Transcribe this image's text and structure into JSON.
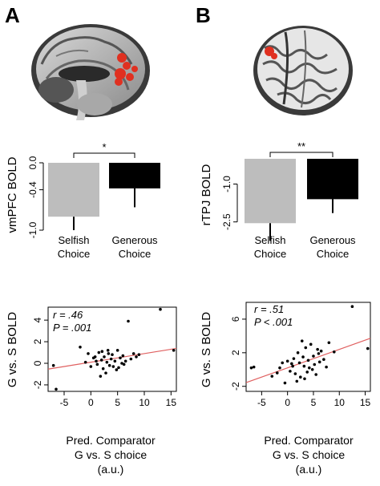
{
  "panels": [
    {
      "letter": "A",
      "brain_color": "#e03020",
      "bar": {
        "type": "bar",
        "ylabel": "vmPFC BOLD",
        "categories": [
          "Selfish\nChoice",
          "Generous\nChoice"
        ],
        "values": [
          -0.8,
          -0.38
        ],
        "errors": [
          0.2,
          0.28
        ],
        "colors": [
          "#bdbdbd",
          "#000000"
        ],
        "ylim": [
          -1.0,
          0.0
        ],
        "yticks": [
          0.0,
          -0.4,
          -1.0
        ],
        "ytick_labels": [
          "0.0",
          "-0.4",
          "-1.0"
        ],
        "significance": "*"
      },
      "scatter": {
        "type": "scatter",
        "ylabel": "G vs. S BOLD",
        "xlabel": [
          "Pred. Comparator",
          "G vs. S choice",
          "(a.u.)"
        ],
        "xlim": [
          -8,
          16
        ],
        "ylim": [
          -2.6,
          5.2
        ],
        "xticks": [
          -5,
          0,
          5,
          10,
          15
        ],
        "yticks": [
          -2,
          0,
          2,
          4
        ],
        "r_text": "r = .46",
        "p_text": "P = .001",
        "fit": {
          "slope": 0.08,
          "intercept": 0.1,
          "color": "#e06060"
        },
        "points": [
          [
            -7,
            -0.2
          ],
          [
            -6.5,
            -2.4
          ],
          [
            -2,
            1.5
          ],
          [
            -1,
            0.1
          ],
          [
            -0.5,
            0.9
          ],
          [
            0,
            -0.3
          ],
          [
            0.5,
            0.5
          ],
          [
            1,
            0.2
          ],
          [
            1.2,
            -0.1
          ],
          [
            1.5,
            1.0
          ],
          [
            2,
            0.3
          ],
          [
            2.3,
            -0.5
          ],
          [
            2.5,
            0.6
          ],
          [
            3,
            0.1
          ],
          [
            3.2,
            1.2
          ],
          [
            3.5,
            -0.2
          ],
          [
            3.8,
            0.4
          ],
          [
            4,
            0.8
          ],
          [
            4.2,
            -0.3
          ],
          [
            4.5,
            0.2
          ],
          [
            5,
            1.2
          ],
          [
            5.2,
            -0.4
          ],
          [
            5.5,
            0.5
          ],
          [
            6,
            0.7
          ],
          [
            6.2,
            -0.1
          ],
          [
            6.5,
            0.2
          ],
          [
            7,
            3.9
          ],
          [
            7.5,
            0.4
          ],
          [
            8,
            0.9
          ],
          [
            8.5,
            0.6
          ],
          [
            9,
            0.8
          ],
          [
            13,
            5.0
          ],
          [
            15.5,
            1.2
          ],
          [
            2.8,
            -0.9
          ],
          [
            4.8,
            -0.6
          ],
          [
            3.3,
            0.9
          ],
          [
            5.8,
            0.0
          ],
          [
            1.8,
            -1.2
          ],
          [
            0.8,
            0.6
          ],
          [
            2.1,
            1.1
          ]
        ]
      }
    },
    {
      "letter": "B",
      "brain_color": "#e03020",
      "bar": {
        "type": "bar",
        "ylabel": "rTPJ BOLD",
        "categories": [
          "Selfish\nChoice",
          "Generous\nChoice"
        ],
        "values": [
          -2.55,
          -1.6
        ],
        "errors": [
          0.7,
          0.55
        ],
        "colors": [
          "#bdbdbd",
          "#000000"
        ],
        "ylim": [
          -2.7,
          0.0
        ],
        "yticks": [
          -1.0,
          -2.5
        ],
        "ytick_labels": [
          "-1.0",
          "-2.5"
        ],
        "significance": "**"
      },
      "scatter": {
        "type": "scatter",
        "ylabel": "G vs. S BOLD",
        "xlabel": [
          "Pred. Comparator",
          "G vs. S choice",
          "(a.u.)"
        ],
        "xlim": [
          -8,
          16
        ],
        "ylim": [
          -2.6,
          8
        ],
        "xticks": [
          -5,
          0,
          5,
          10,
          15
        ],
        "yticks": [
          -2,
          2,
          6
        ],
        "r_text": "r = .51",
        "p_text": "P < .001",
        "fit": {
          "slope": 0.22,
          "intercept": 0.2,
          "color": "#e06060"
        },
        "points": [
          [
            -7,
            0.2
          ],
          [
            -6.5,
            0.3
          ],
          [
            -3,
            -0.8
          ],
          [
            -2,
            -0.4
          ],
          [
            -1,
            0.8
          ],
          [
            -0.5,
            -1.6
          ],
          [
            0,
            1.0
          ],
          [
            0.5,
            -0.2
          ],
          [
            1,
            0.4
          ],
          [
            1.2,
            1.3
          ],
          [
            1.5,
            -0.5
          ],
          [
            2,
            2.0
          ],
          [
            2.3,
            0.8
          ],
          [
            2.5,
            -0.9
          ],
          [
            3,
            1.5
          ],
          [
            3.2,
            0.4
          ],
          [
            3.5,
            2.6
          ],
          [
            3.8,
            -0.3
          ],
          [
            4,
            1.1
          ],
          [
            4.2,
            0.2
          ],
          [
            4.5,
            3.0
          ],
          [
            5,
            1.6
          ],
          [
            5.2,
            0.6
          ],
          [
            5.5,
            -0.6
          ],
          [
            6,
            1.9
          ],
          [
            6.2,
            0.9
          ],
          [
            6.5,
            2.2
          ],
          [
            7,
            1.2
          ],
          [
            7.5,
            0.3
          ],
          [
            8,
            3.2
          ],
          [
            9,
            2.1
          ],
          [
            12.5,
            7.5
          ],
          [
            15.5,
            2.5
          ],
          [
            1.8,
            -1.4
          ],
          [
            2.8,
            3.4
          ],
          [
            4.8,
            0.0
          ],
          [
            0.8,
            0.7
          ],
          [
            3.3,
            -1.1
          ],
          [
            5.8,
            2.4
          ],
          [
            -1.5,
            0.2
          ]
        ]
      }
    }
  ],
  "chart_data": [
    {
      "type": "bar",
      "title": "",
      "ylabel": "vmPFC BOLD",
      "categories": [
        "Selfish Choice",
        "Generous Choice"
      ],
      "values": [
        -0.8,
        -0.38
      ],
      "ylim": [
        -1.0,
        0.0
      ]
    },
    {
      "type": "bar",
      "title": "",
      "ylabel": "rTPJ BOLD",
      "categories": [
        "Selfish Choice",
        "Generous Choice"
      ],
      "values": [
        -2.55,
        -1.6
      ],
      "ylim": [
        -2.7,
        0.0
      ]
    },
    {
      "type": "scatter",
      "title": "",
      "xlabel": "Pred. Comparator G vs. S choice (a.u.)",
      "ylabel": "G vs. S BOLD",
      "xlim": [
        -8,
        16
      ],
      "ylim": [
        -2.6,
        5.2
      ],
      "annotations": [
        "r = .46",
        "P = .001"
      ]
    },
    {
      "type": "scatter",
      "title": "",
      "xlabel": "Pred. Comparator G vs. S choice (a.u.)",
      "ylabel": "G vs. S BOLD",
      "xlim": [
        -8,
        16
      ],
      "ylim": [
        -2.6,
        8
      ],
      "annotations": [
        "r = .51",
        "P < .001"
      ]
    }
  ]
}
